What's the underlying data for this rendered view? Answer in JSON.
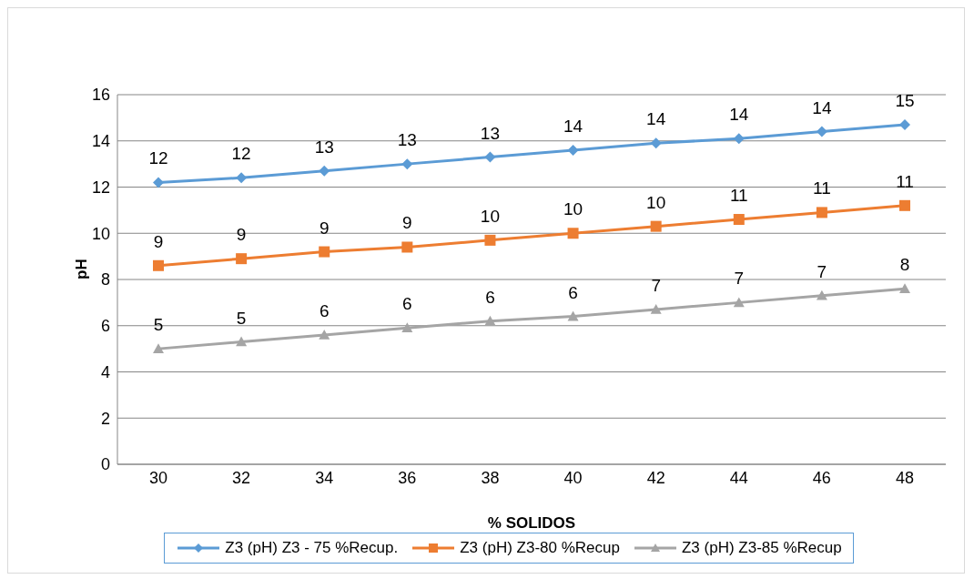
{
  "chart_data": {
    "type": "line",
    "xlabel": "% SOLIDOS",
    "ylabel": "pH",
    "categories": [
      "30",
      "32",
      "34",
      "36",
      "38",
      "40",
      "42",
      "44",
      "46",
      "48"
    ],
    "ylim": [
      0,
      16
    ],
    "yticks": [
      0,
      2,
      4,
      6,
      8,
      10,
      12,
      14,
      16
    ],
    "grid": "y",
    "legend": "bottom",
    "line_style": "solid",
    "series": [
      {
        "name": "Z3 (pH) Z3 - 75 %Recup.",
        "color": "#5b9bd5",
        "marker": "diamond",
        "values": [
          12.2,
          12.4,
          12.7,
          13.0,
          13.3,
          13.6,
          13.9,
          14.1,
          14.4,
          14.7
        ],
        "value_labels": [
          "12",
          "12",
          "13",
          "13",
          "13",
          "14",
          "14",
          "14",
          "14",
          "15"
        ]
      },
      {
        "name": "Z3 (pH) Z3-80 %Recup",
        "color": "#ed7d31",
        "marker": "square",
        "values": [
          8.6,
          8.9,
          9.2,
          9.4,
          9.7,
          10.0,
          10.3,
          10.6,
          10.9,
          11.2
        ],
        "value_labels": [
          "9",
          "9",
          "9",
          "9",
          "10",
          "10",
          "10",
          "11",
          "11",
          "11"
        ]
      },
      {
        "name": "Z3 (pH) Z3-85 %Recup",
        "color": "#a5a5a5",
        "marker": "triangle",
        "values": [
          5.0,
          5.3,
          5.6,
          5.9,
          6.2,
          6.4,
          6.7,
          7.0,
          7.3,
          7.6
        ],
        "value_labels": [
          "5",
          "5",
          "6",
          "6",
          "6",
          "6",
          "7",
          "7",
          "7",
          "8"
        ]
      }
    ]
  }
}
